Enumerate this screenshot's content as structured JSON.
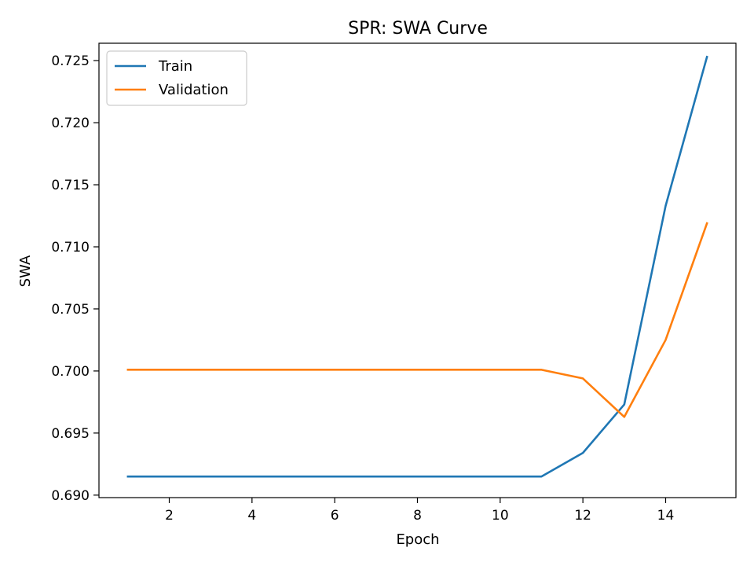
{
  "chart_data": {
    "type": "line",
    "title": "SPR: SWA Curve",
    "xlabel": "Epoch",
    "ylabel": "SWA",
    "xlim": [
      0.3,
      15.7
    ],
    "ylim": [
      0.6898,
      0.7264
    ],
    "xticks": [
      2,
      4,
      6,
      8,
      10,
      12,
      14
    ],
    "xtick_labels": [
      "2",
      "4",
      "6",
      "8",
      "10",
      "12",
      "14"
    ],
    "yticks": [
      0.69,
      0.695,
      0.7,
      0.705,
      0.71,
      0.715,
      0.72,
      0.725
    ],
    "ytick_labels": [
      "0.690",
      "0.695",
      "0.700",
      "0.705",
      "0.710",
      "0.715",
      "0.720",
      "0.725"
    ],
    "grid": false,
    "legend_position": "top-left",
    "x": [
      1,
      2,
      3,
      4,
      5,
      6,
      7,
      8,
      9,
      10,
      11,
      12,
      13,
      14,
      15
    ],
    "series": [
      {
        "name": "Train",
        "color": "#1f77b4",
        "values": [
          0.6915,
          0.6915,
          0.6915,
          0.6915,
          0.6915,
          0.6915,
          0.6915,
          0.6915,
          0.6915,
          0.6915,
          0.6915,
          0.6934,
          0.6973,
          0.7133,
          0.7253
        ]
      },
      {
        "name": "Validation",
        "color": "#ff7f0e",
        "values": [
          0.7001,
          0.7001,
          0.7001,
          0.7001,
          0.7001,
          0.7001,
          0.7001,
          0.7001,
          0.7001,
          0.7001,
          0.7001,
          0.6994,
          0.6963,
          0.7025,
          0.7119
        ]
      }
    ]
  }
}
